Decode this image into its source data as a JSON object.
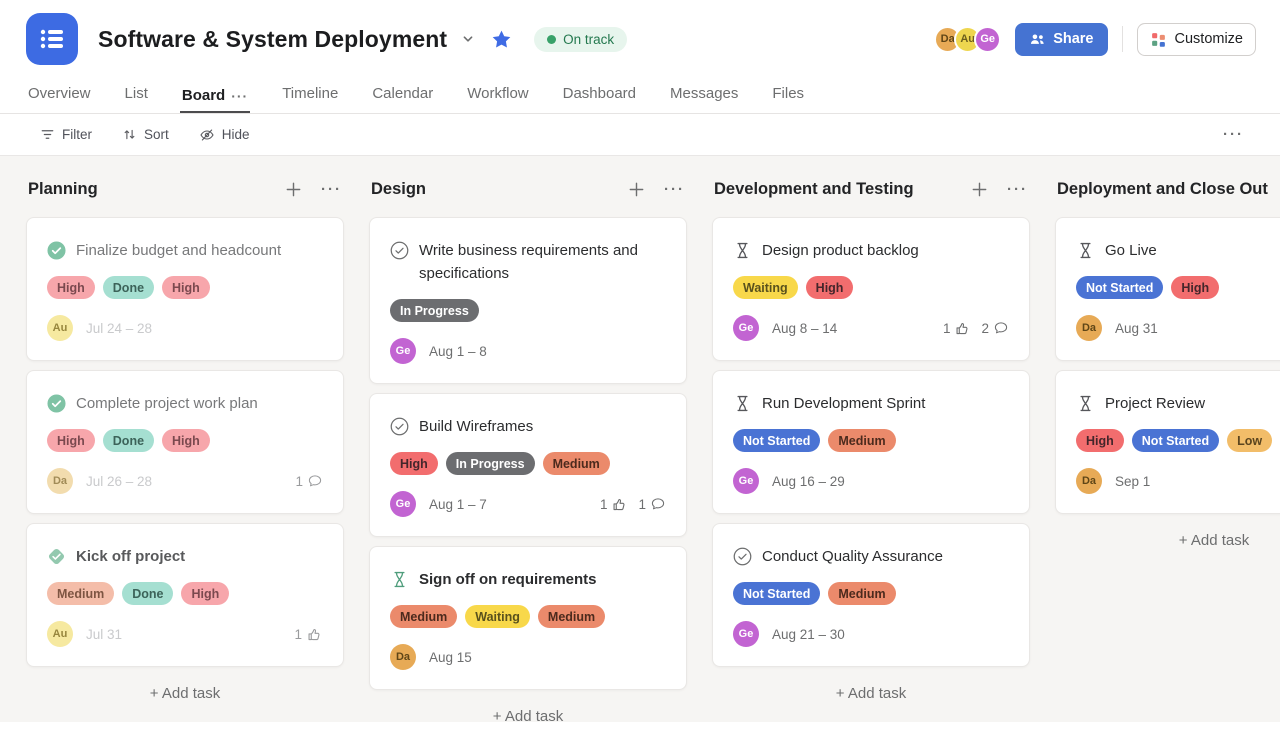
{
  "header": {
    "title": "Software & System Deployment",
    "status": {
      "label": "On track",
      "bg": "#e7f5ed",
      "dot": "#38a169",
      "fg": "#24794f"
    },
    "members": [
      {
        "initials": "Da",
        "bg": "#e7aa56",
        "fg": "#5f4617"
      },
      {
        "initials": "Au",
        "bg": "#eed64f",
        "fg": "#6b5e1d"
      },
      {
        "initials": "Ge",
        "bg": "#c264d2",
        "fg": "#ffffff"
      }
    ],
    "share_label": "Share",
    "customize_label": "Customize"
  },
  "tabs": {
    "items": [
      {
        "label": "Overview"
      },
      {
        "label": "List"
      },
      {
        "label": "Board",
        "active": true,
        "more": "···"
      },
      {
        "label": "Timeline"
      },
      {
        "label": "Calendar"
      },
      {
        "label": "Workflow"
      },
      {
        "label": "Dashboard"
      },
      {
        "label": "Messages"
      },
      {
        "label": "Files"
      }
    ]
  },
  "toolbar": {
    "filter": "Filter",
    "sort": "Sort",
    "hide": "Hide",
    "more": "···"
  },
  "board": {
    "add_task": "+ Add task",
    "columns": [
      {
        "title": "Planning",
        "cards": [
          {
            "icon": "check-circle-filled",
            "icon_color": "#7fc3a5",
            "title": "Finalize budget and headcount",
            "title_color": "#77787a",
            "title_bold": false,
            "chips": [
              {
                "label": "High",
                "bg": "#f7a6ab",
                "fg": "#7b494f"
              },
              {
                "label": "Done",
                "bg": "#a5dfd1",
                "fg": "#3c6359"
              },
              {
                "label": "High",
                "bg": "#f7a6ab",
                "fg": "#7b494f"
              }
            ],
            "avatar": {
              "initials": "Au",
              "bg": "#f6e9a0",
              "fg": "#97863d"
            },
            "date": "Jul 24 – 28",
            "date_color": "#c9cacc",
            "likes": null,
            "comments": null,
            "count_color": "#9a9b9d"
          },
          {
            "icon": "check-circle-filled",
            "icon_color": "#7fc3a5",
            "title": "Complete project work plan",
            "title_color": "#77787a",
            "title_bold": false,
            "chips": [
              {
                "label": "High",
                "bg": "#f7a6ab",
                "fg": "#7b494f"
              },
              {
                "label": "Done",
                "bg": "#a5dfd1",
                "fg": "#3c6359"
              },
              {
                "label": "High",
                "bg": "#f7a6ab",
                "fg": "#7b494f"
              }
            ],
            "avatar": {
              "initials": "Da",
              "bg": "#f2dcae",
              "fg": "#a18b57"
            },
            "date": "Jul 26 – 28",
            "date_color": "#c9cacc",
            "likes": null,
            "comments": 1,
            "count_color": "#9a9b9d"
          },
          {
            "icon": "diamond-check",
            "icon_color": "#93c9af",
            "title": "Kick off project",
            "title_color": "#58595b",
            "title_bold": true,
            "chips": [
              {
                "label": "Medium",
                "bg": "#f4bda9",
                "fg": "#7e5542"
              },
              {
                "label": "Done",
                "bg": "#a5dfd1",
                "fg": "#3c6359"
              },
              {
                "label": "High",
                "bg": "#f7a6ab",
                "fg": "#7b494f"
              }
            ],
            "avatar": {
              "initials": "Au",
              "bg": "#f6e9a0",
              "fg": "#97863d"
            },
            "date": "Jul 31",
            "date_color": "#c9cacc",
            "likes": 1,
            "comments": null,
            "count_color": "#9a9b9d"
          }
        ]
      },
      {
        "title": "Design",
        "cards": [
          {
            "icon": "check-circle-outline",
            "icon_color": "#6d6e6f",
            "title": "Write business requirements and specifications",
            "title_color": "#2b2c2e",
            "title_bold": false,
            "chips": [
              {
                "label": "In Progress",
                "bg": "#6c6d70",
                "fg": "#ffffff"
              }
            ],
            "avatar": {
              "initials": "Ge",
              "bg": "#c264d2",
              "fg": "#ffffff"
            },
            "date": "Aug 1 – 8",
            "date_color": "#6d6e6f",
            "likes": null,
            "comments": null,
            "count_color": "#6d6e6f"
          },
          {
            "icon": "check-circle-outline",
            "icon_color": "#6d6e6f",
            "title": "Build Wireframes",
            "title_color": "#2b2c2e",
            "title_bold": false,
            "chips": [
              {
                "label": "High",
                "bg": "#f26d6e",
                "fg": "#44262b"
              },
              {
                "label": "In Progress",
                "bg": "#6c6d70",
                "fg": "#ffffff"
              },
              {
                "label": "Medium",
                "bg": "#eb8a6b",
                "fg": "#4c2a1d"
              }
            ],
            "avatar": {
              "initials": "Ge",
              "bg": "#c264d2",
              "fg": "#ffffff"
            },
            "date": "Aug 1 – 7",
            "date_color": "#6d6e6f",
            "likes": 1,
            "comments": 1,
            "count_color": "#6d6e6f"
          },
          {
            "icon": "hourglass-green",
            "icon_color": "#4f9d7c",
            "title": "Sign off on requirements",
            "title_color": "#2b2c2e",
            "title_bold": true,
            "chips": [
              {
                "label": "Medium",
                "bg": "#eb8a6b",
                "fg": "#4c2a1d"
              },
              {
                "label": "Waiting",
                "bg": "#f8d84a",
                "fg": "#59511d"
              },
              {
                "label": "Medium",
                "bg": "#eb8a6b",
                "fg": "#4c2a1d"
              }
            ],
            "avatar": {
              "initials": "Da",
              "bg": "#e7aa56",
              "fg": "#5f4617"
            },
            "date": "Aug 15",
            "date_color": "#6d6e6f",
            "likes": null,
            "comments": null,
            "count_color": "#6d6e6f"
          }
        ]
      },
      {
        "title": "Development and Testing",
        "cards": [
          {
            "icon": "hourglass",
            "icon_color": "#56575b",
            "title": "Design product backlog",
            "title_color": "#2b2c2e",
            "title_bold": false,
            "chips": [
              {
                "label": "Waiting",
                "bg": "#f8d84a",
                "fg": "#59511d"
              },
              {
                "label": "High",
                "bg": "#f26d6e",
                "fg": "#44262b"
              }
            ],
            "avatar": {
              "initials": "Ge",
              "bg": "#c264d2",
              "fg": "#ffffff"
            },
            "date": "Aug 8 – 14",
            "date_color": "#6d6e6f",
            "likes": 1,
            "comments": 2,
            "count_color": "#6d6e6f"
          },
          {
            "icon": "hourglass",
            "icon_color": "#56575b",
            "title": "Run Development Sprint",
            "title_color": "#2b2c2e",
            "title_bold": false,
            "chips": [
              {
                "label": "Not Started",
                "bg": "#4a73d4",
                "fg": "#ffffff"
              },
              {
                "label": "Medium",
                "bg": "#eb8a6b",
                "fg": "#4c2a1d"
              }
            ],
            "avatar": {
              "initials": "Ge",
              "bg": "#c264d2",
              "fg": "#ffffff"
            },
            "date": "Aug 16 – 29",
            "date_color": "#6d6e6f",
            "likes": null,
            "comments": null,
            "count_color": "#6d6e6f"
          },
          {
            "icon": "check-circle-outline",
            "icon_color": "#6d6e6f",
            "title": "Conduct Quality Assurance",
            "title_color": "#2b2c2e",
            "title_bold": false,
            "chips": [
              {
                "label": "Not Started",
                "bg": "#4a73d4",
                "fg": "#ffffff"
              },
              {
                "label": "Medium",
                "bg": "#eb8a6b",
                "fg": "#4c2a1d"
              }
            ],
            "avatar": {
              "initials": "Ge",
              "bg": "#c264d2",
              "fg": "#ffffff"
            },
            "date": "Aug 21 – 30",
            "date_color": "#6d6e6f",
            "likes": null,
            "comments": null,
            "count_color": "#6d6e6f"
          }
        ]
      },
      {
        "title": "Deployment and Close Out",
        "cards": [
          {
            "icon": "hourglass",
            "icon_color": "#56575b",
            "title": "Go Live",
            "title_color": "#2b2c2e",
            "title_bold": false,
            "chips": [
              {
                "label": "Not Started",
                "bg": "#4a73d4",
                "fg": "#ffffff"
              },
              {
                "label": "High",
                "bg": "#f26d6e",
                "fg": "#44262b"
              }
            ],
            "avatar": {
              "initials": "Da",
              "bg": "#e7aa56",
              "fg": "#5f4617"
            },
            "date": "Aug 31",
            "date_color": "#6d6e6f",
            "likes": null,
            "comments": null,
            "count_color": "#6d6e6f"
          },
          {
            "icon": "hourglass",
            "icon_color": "#56575b",
            "title": "Project Review",
            "title_color": "#2b2c2e",
            "title_bold": false,
            "chips": [
              {
                "label": "High",
                "bg": "#f26d6e",
                "fg": "#44262b"
              },
              {
                "label": "Not Started",
                "bg": "#4a73d4",
                "fg": "#ffffff"
              },
              {
                "label": "Low",
                "bg": "#f2bd69",
                "fg": "#5b451f"
              }
            ],
            "avatar": {
              "initials": "Da",
              "bg": "#e7aa56",
              "fg": "#5f4617"
            },
            "date": "Sep 1",
            "date_color": "#6d6e6f",
            "likes": null,
            "comments": null,
            "count_color": "#6d6e6f"
          }
        ]
      }
    ]
  }
}
